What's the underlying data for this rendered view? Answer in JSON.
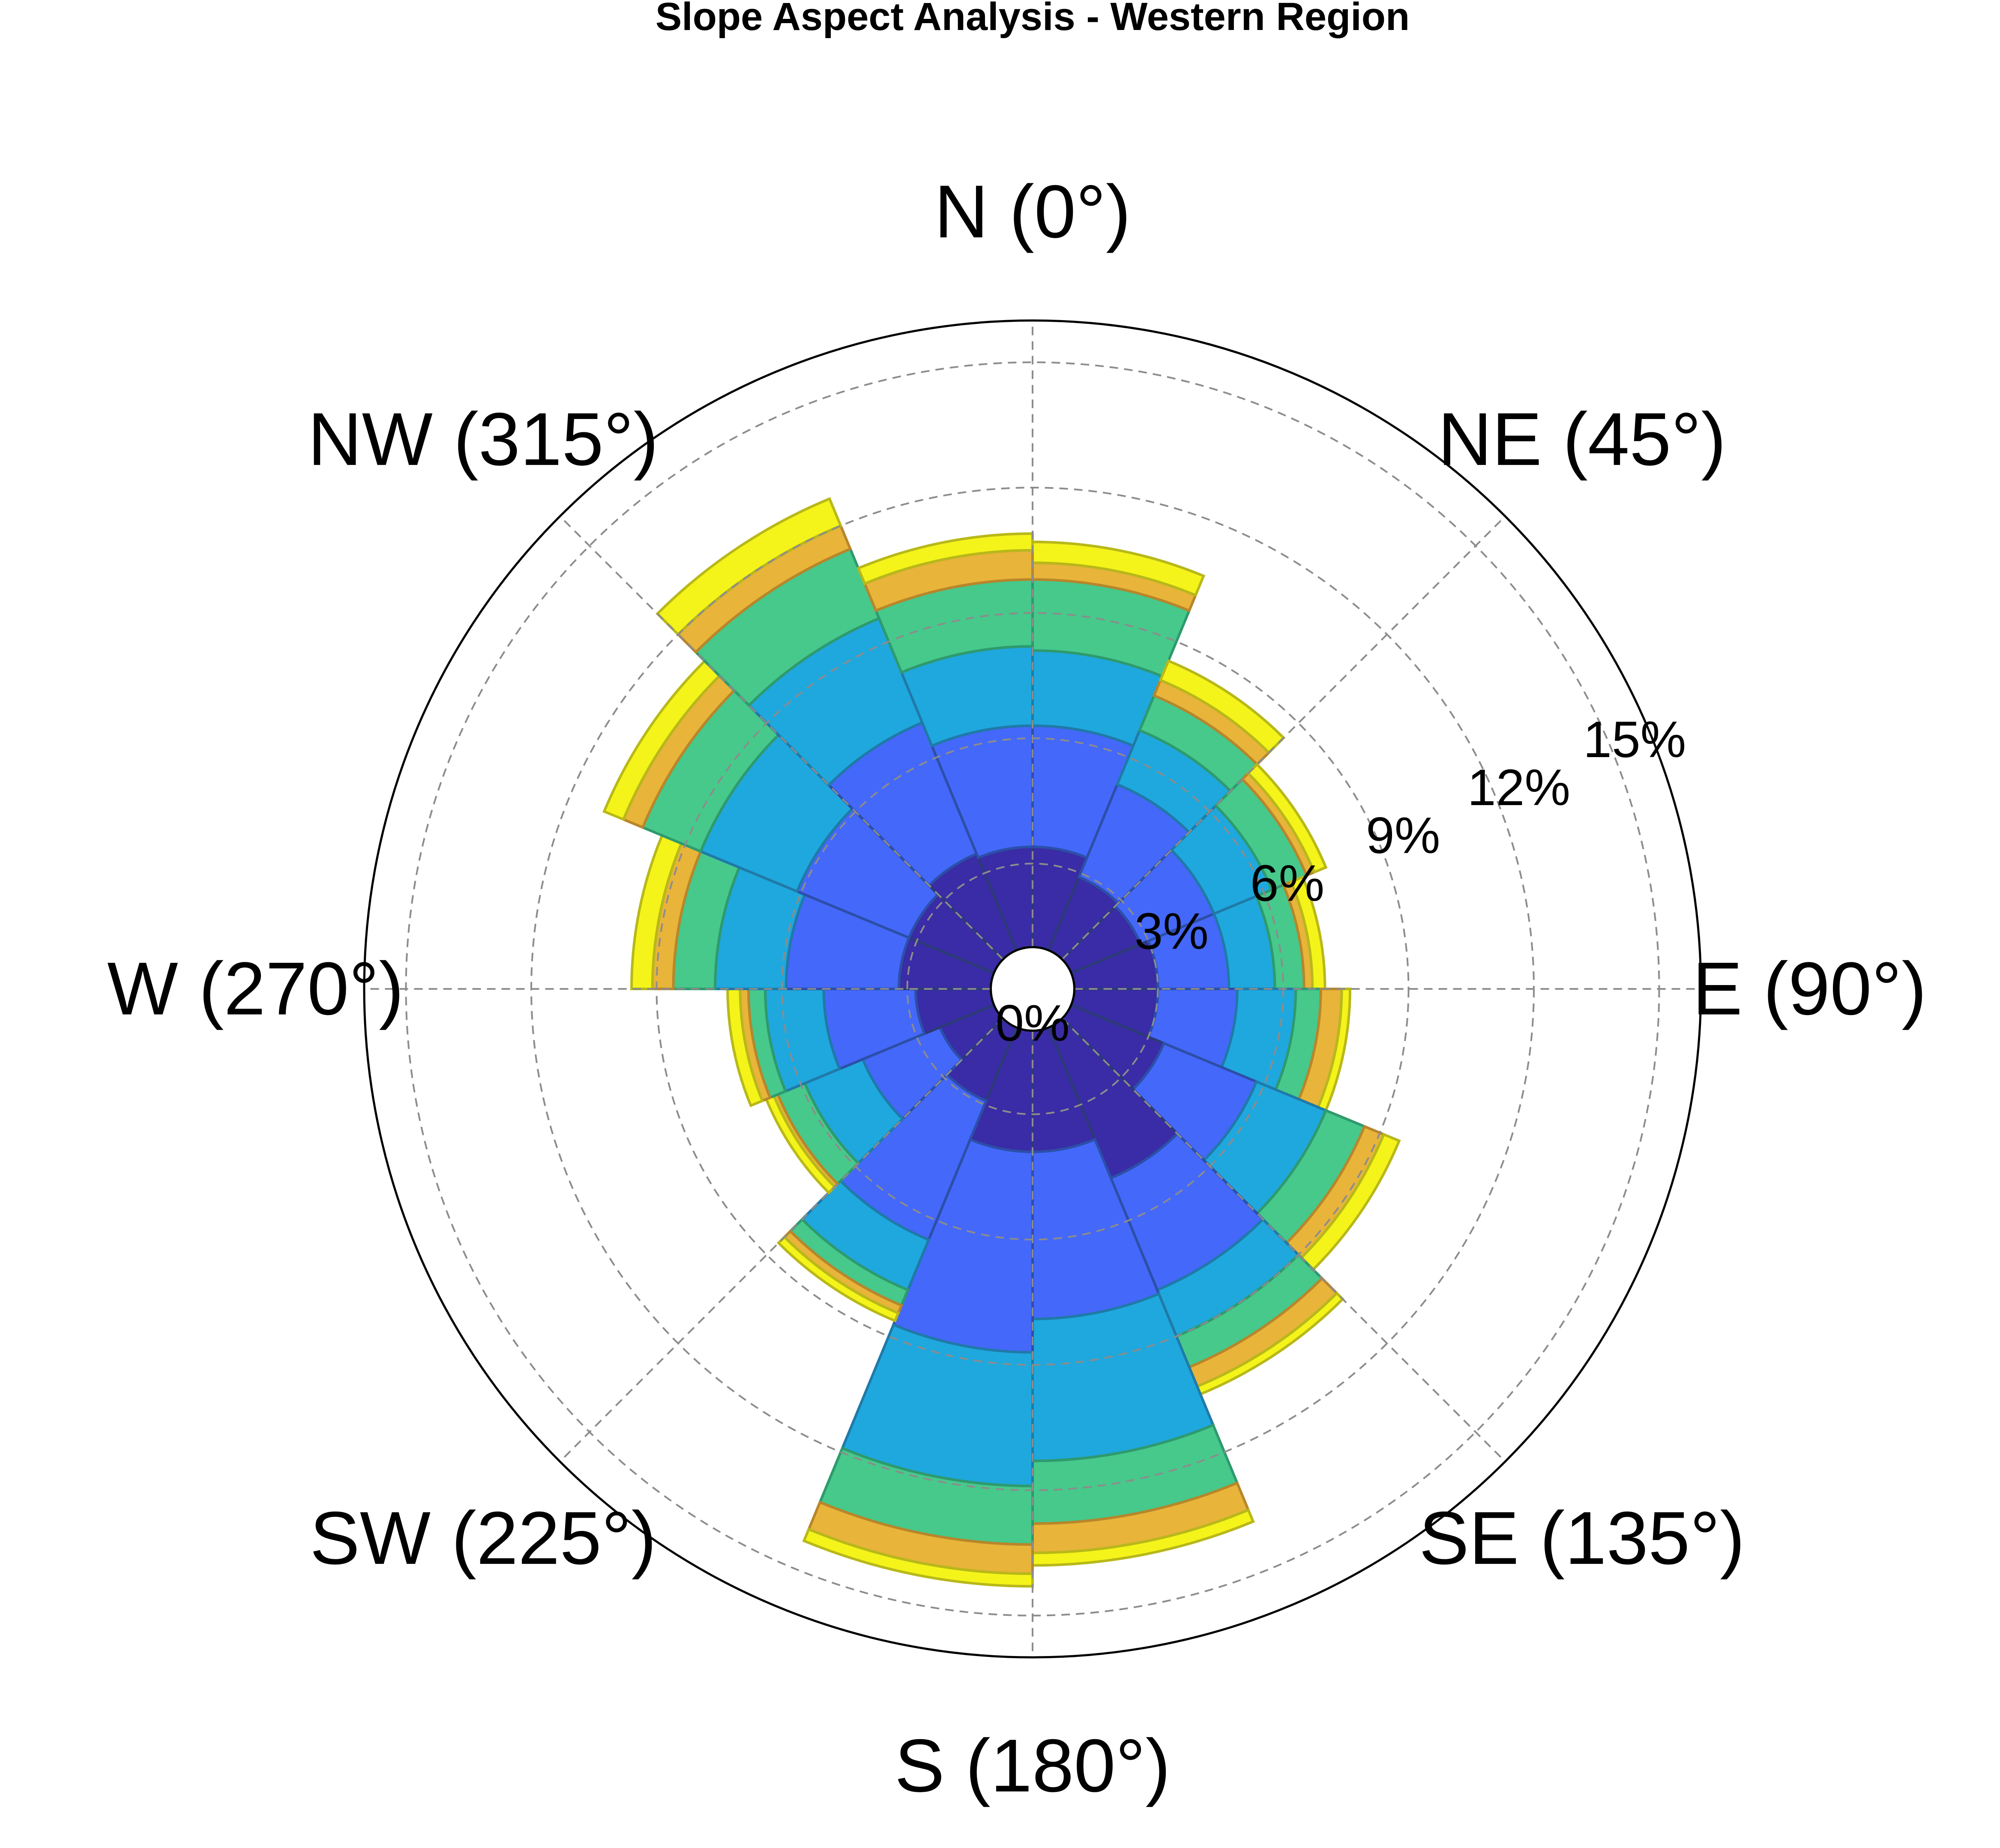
{
  "chart_data": {
    "type": "bar",
    "projection": "polar",
    "title": "Slope Aspect Analysis - Western Region",
    "direction_labels": [
      {
        "name": "N (0°)",
        "angle": 0
      },
      {
        "name": "NE (45°)",
        "angle": 45
      },
      {
        "name": "E (90°)",
        "angle": 90
      },
      {
        "name": "SE (135°)",
        "angle": 135
      },
      {
        "name": "S (180°)",
        "angle": 180
      },
      {
        "name": "SW (225°)",
        "angle": 225
      },
      {
        "name": "W (270°)",
        "angle": 270
      },
      {
        "name": "NW (315°)",
        "angle": 315
      }
    ],
    "radial_ticks": [
      0,
      3,
      6,
      9,
      12,
      15
    ],
    "radial_tick_labels": [
      "0%",
      "3%",
      "6%",
      "9%",
      "12%",
      "15%"
    ],
    "rlim": [
      0,
      16
    ],
    "inner_hole": 1,
    "grid": true,
    "sector_width_deg": 22.5,
    "sector_start_angles": [
      0,
      22.5,
      45,
      67.5,
      90,
      112.5,
      135,
      157.5,
      180,
      202.5,
      225,
      247.5,
      270,
      292.5,
      315,
      337.5
    ],
    "stack_colors": [
      "#3a2ba6",
      "#4468fa",
      "#1fa8dd",
      "#46c98b",
      "#e8b43a",
      "#f4f41a"
    ],
    "stack_edge_colors": [
      "#2c3a78",
      "#2c4fa8",
      "#1f7aa8",
      "#2e9a6e",
      "#b8862a",
      "#b8b81a"
    ],
    "cumulative_edges": [
      [
        3.4,
        6.3,
        8.1,
        9.8,
        10.2,
        10.7
      ],
      [
        2.9,
        5.3,
        6.7,
        7.6,
        8.0,
        8.5
      ],
      [
        2.8,
        4.7,
        6.2,
        7.1,
        7.3,
        7.6
      ],
      [
        3.0,
        4.7,
        5.8,
        6.5,
        6.7,
        7.0
      ],
      [
        3.0,
        4.9,
        6.3,
        6.9,
        7.4,
        7.6
      ],
      [
        3.4,
        5.8,
        7.6,
        8.6,
        9.1,
        9.5
      ],
      [
        4.9,
        7.8,
        9.0,
        9.8,
        10.3,
        10.5
      ],
      [
        3.9,
        7.9,
        11.3,
        12.8,
        13.5,
        13.8
      ],
      [
        3.9,
        8.7,
        11.9,
        13.3,
        14.0,
        14.3
      ],
      [
        2.9,
        6.5,
        7.8,
        8.2,
        8.4,
        8.6
      ],
      [
        2.4,
        4.4,
        5.9,
        6.6,
        6.7,
        6.9
      ],
      [
        2.8,
        5.0,
        6.4,
        6.8,
        7.0,
        7.3
      ],
      [
        3.2,
        5.9,
        7.6,
        8.6,
        9.1,
        9.6
      ],
      [
        3.2,
        6.1,
        8.6,
        10.1,
        10.6,
        11.1
      ],
      [
        3.5,
        6.9,
        9.6,
        11.4,
        12.0,
        12.7
      ],
      [
        3.4,
        6.3,
        8.2,
        9.8,
        10.5,
        10.9
      ]
    ]
  }
}
